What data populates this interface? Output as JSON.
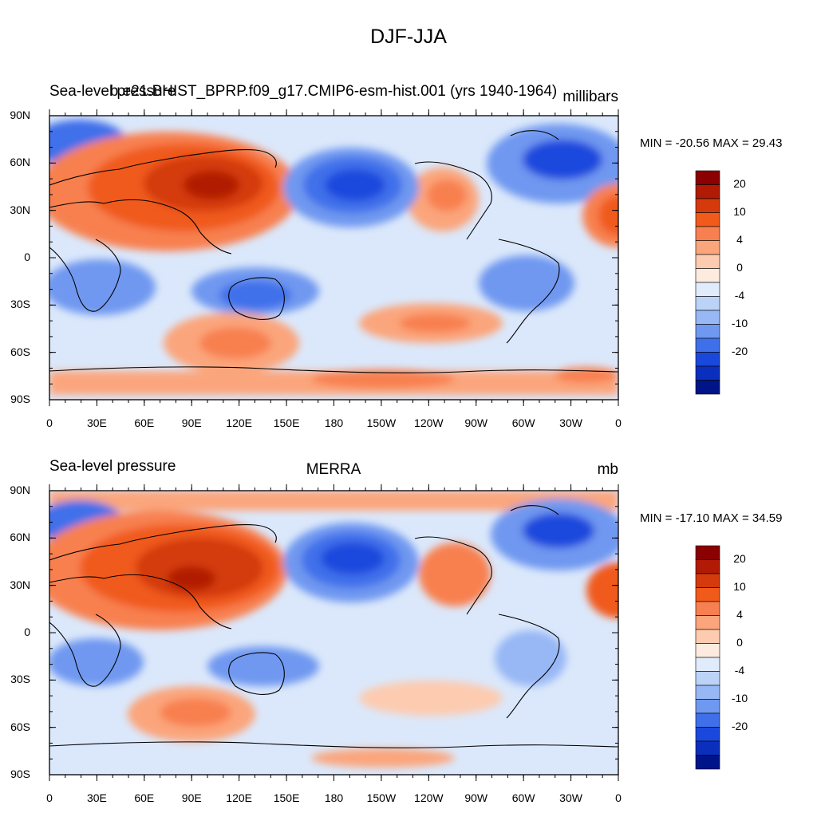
{
  "figure": {
    "title": "DJF-JJA"
  },
  "ticks": {
    "lat": [
      "90N",
      "60N",
      "30N",
      "0",
      "30S",
      "60S",
      "90S"
    ],
    "lon": [
      "0",
      "30E",
      "60E",
      "90E",
      "120E",
      "150E",
      "180",
      "150W",
      "120W",
      "90W",
      "60W",
      "30W",
      "0"
    ]
  },
  "colorbar": {
    "labels": [
      "20",
      "10",
      "4",
      "0",
      "-4",
      "-10",
      "-20"
    ],
    "colors": [
      "#8b0000",
      "#b11a04",
      "#d43a0b",
      "#f05a1a",
      "#f88050",
      "#fba57c",
      "#fdcbb0",
      "#fdebe0",
      "#e0ecfb",
      "#bcd3f8",
      "#97b7f5",
      "#6f98f0",
      "#3f70ea",
      "#1a48dd",
      "#0a2fbc",
      "#00148a"
    ]
  },
  "panels": [
    {
      "left_title": "Sea-level pressure",
      "center_title": "b.e21.BHIST_BPRP.f09_g17.CMIP6-esm-hist.001 (yrs 1940-1964)",
      "right_title": "millibars",
      "min": "-20.56",
      "max": "29.43",
      "minmax_text": "MIN = -20.56 MAX =  29.43"
    },
    {
      "left_title": "Sea-level pressure",
      "center_title": "MERRA",
      "right_title": "mb",
      "min": "-17.10",
      "max": "34.59",
      "minmax_text": "MIN = -17.10 MAX =  34.59"
    }
  ]
}
